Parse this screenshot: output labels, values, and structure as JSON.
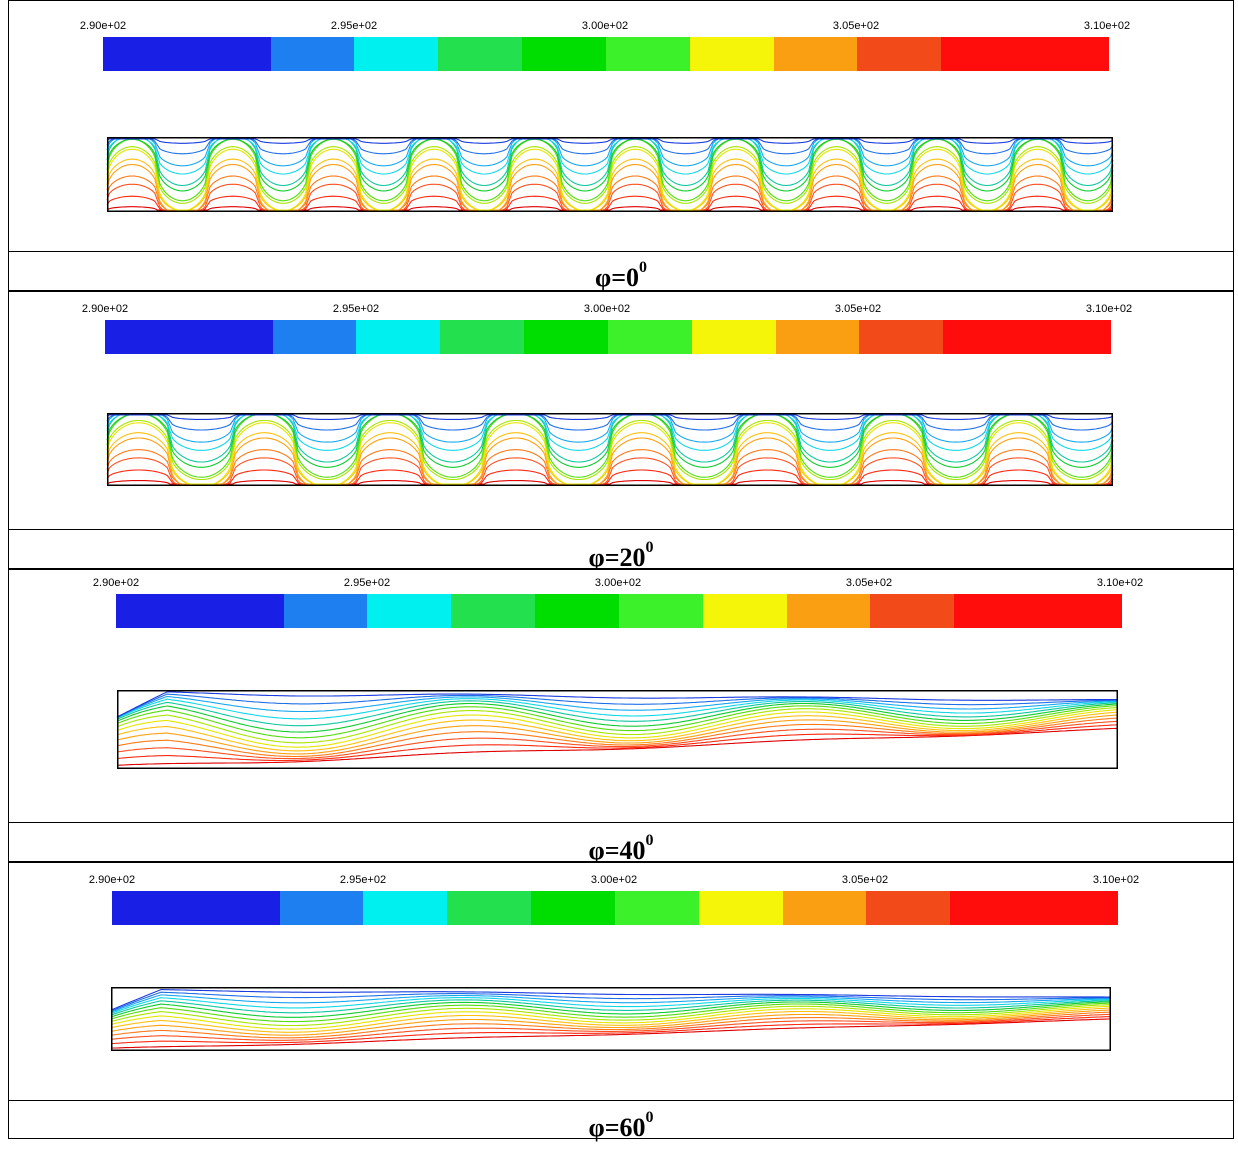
{
  "colorbar": {
    "tick_labels": [
      "2.90e+02",
      "2.95e+02",
      "3.00e+02",
      "3.05e+02",
      "3.10e+02"
    ],
    "segments": [
      {
        "color": "#1a1fe6",
        "weight": 2
      },
      {
        "color": "#1e7ff0",
        "weight": 1
      },
      {
        "color": "#00f0f0",
        "weight": 1
      },
      {
        "color": "#22e04e",
        "weight": 1
      },
      {
        "color": "#00dd00",
        "weight": 1
      },
      {
        "color": "#3cf02a",
        "weight": 1
      },
      {
        "color": "#f5f50a",
        "weight": 1
      },
      {
        "color": "#fb9f12",
        "weight": 1
      },
      {
        "color": "#f34a1a",
        "weight": 1
      },
      {
        "color": "#ff0d0d",
        "weight": 2
      }
    ]
  },
  "contour_colors": [
    "#e00000",
    "#ff2a10",
    "#ff5020",
    "#ff7a18",
    "#ffa010",
    "#ffc010",
    "#e6e600",
    "#a8e600",
    "#55dd10",
    "#10cc30",
    "#10c8a0",
    "#10d8e8",
    "#18a8f0",
    "#2070e8",
    "#1a3ce0"
  ],
  "panels": [
    {
      "caption": "φ=0",
      "exponent": "0",
      "pattern": "cells",
      "cells": 10,
      "amp": 0.42
    },
    {
      "caption": "φ=20",
      "exponent": "0",
      "pattern": "cells",
      "cells": 8,
      "amp": 0.45
    },
    {
      "caption": "φ=40",
      "exponent": "0",
      "pattern": "waves",
      "cells": 3,
      "amp": 0.22
    },
    {
      "caption": "φ=60",
      "exponent": "0",
      "pattern": "waves",
      "cells": 3,
      "amp": 0.14
    }
  ]
}
